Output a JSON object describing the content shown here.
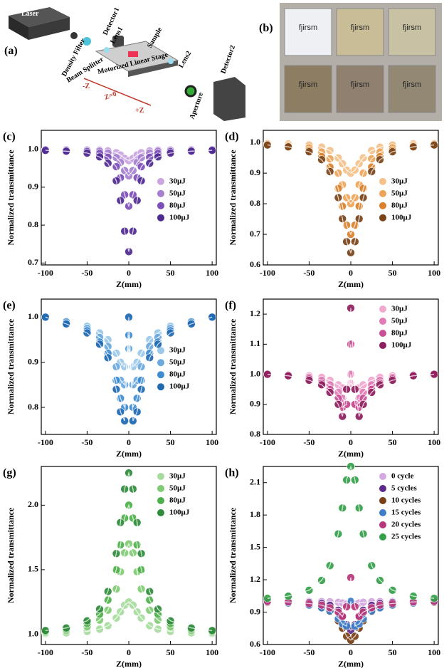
{
  "diagram": {
    "label": "(a)",
    "laser": "Laser",
    "detector1": "Detector1",
    "density_filter": "Density Filter",
    "lens1": "Lens1",
    "sample": "Sample",
    "beam_splitter": "Beam Splitter",
    "stage": "Motorized Linear Stage",
    "lens2": "Lens2",
    "minus_z": "-Z",
    "z0": "Z=0",
    "plus_z": "+Z",
    "aperture": "Aperture",
    "detector2": "Detector2"
  },
  "photo": {
    "label": "(b)",
    "samples": [
      "fjirsm",
      "fjirsm",
      "fjirsm",
      "fjirsm",
      "fjirsm",
      "fjirsm"
    ]
  },
  "chart_data": [
    {
      "type": "scatter",
      "panel": "(c)",
      "x_label": "Z(mm)",
      "y_label": "Normalized transmittance",
      "x": [
        -100,
        -75,
        -50,
        -35,
        -25,
        -15,
        -10,
        -5,
        0,
        5,
        10,
        15,
        25,
        35,
        50,
        75,
        100
      ],
      "xlim": [
        -105,
        105
      ],
      "xticks": [
        -100,
        -50,
        0,
        50,
        100
      ],
      "ylim": [
        0.695,
        1.05
      ],
      "yticks": [
        0.7,
        0.8,
        0.9,
        {
          "value": 1,
          "label": "1.0"
        }
      ],
      "legend": "center right",
      "series": [
        {
          "name": "30μJ",
          "color": "#c9a6e0",
          "values": [
            1.0,
            0.999,
            0.999,
            0.998,
            0.996,
            0.991,
            0.985,
            0.976,
            0.97,
            0.976,
            0.985,
            0.991,
            0.996,
            0.998,
            0.999,
            0.999,
            1.0
          ]
        },
        {
          "name": "50μJ",
          "color": "#a57fd0",
          "values": [
            0.999,
            0.999,
            0.997,
            0.995,
            0.99,
            0.978,
            0.965,
            0.944,
            0.93,
            0.944,
            0.965,
            0.978,
            0.99,
            0.995,
            0.997,
            0.999,
            0.999
          ]
        },
        {
          "name": "80μJ",
          "color": "#7d4fb8",
          "values": [
            0.999,
            0.997,
            0.994,
            0.989,
            0.979,
            0.954,
            0.925,
            0.88,
            0.85,
            0.88,
            0.925,
            0.954,
            0.979,
            0.989,
            0.994,
            0.997,
            0.999
          ]
        },
        {
          "name": "100μJ",
          "color": "#4f2a91",
          "values": [
            0.997,
            0.995,
            0.99,
            0.98,
            0.963,
            0.917,
            0.865,
            0.784,
            0.73,
            0.784,
            0.865,
            0.917,
            0.963,
            0.98,
            0.99,
            0.995,
            0.997
          ]
        }
      ]
    },
    {
      "type": "scatter",
      "panel": "(d)",
      "x_label": "Z(mm)",
      "y_label": "Normalized transmittance",
      "x": [
        -100,
        -75,
        -50,
        -35,
        -25,
        -15,
        -10,
        -5,
        0,
        5,
        10,
        15,
        25,
        35,
        50,
        75,
        100
      ],
      "xlim": [
        -105,
        105
      ],
      "xticks": [
        -100,
        -50,
        0,
        50,
        100
      ],
      "ylim": [
        0.6,
        1.04
      ],
      "yticks": [
        0.6,
        0.7,
        0.8,
        0.9,
        {
          "value": 1,
          "label": "1.0"
        }
      ],
      "legend": "center right",
      "series": [
        {
          "name": "30μJ",
          "color": "#f5c28a",
          "values": [
            0.998,
            0.996,
            0.992,
            0.985,
            0.974,
            0.95,
            0.931,
            0.91,
            0.9,
            0.91,
            0.931,
            0.95,
            0.974,
            0.985,
            0.992,
            0.996,
            0.998
          ]
        },
        {
          "name": "50μJ",
          "color": "#eea55a",
          "values": [
            0.996,
            0.992,
            0.983,
            0.969,
            0.947,
            0.9,
            0.862,
            0.82,
            0.8,
            0.82,
            0.862,
            0.9,
            0.947,
            0.969,
            0.983,
            0.992,
            0.996
          ]
        },
        {
          "name": "80μJ",
          "color": "#d9822b",
          "values": [
            0.993,
            0.988,
            0.975,
            0.954,
            0.92,
            0.85,
            0.792,
            0.73,
            0.7,
            0.73,
            0.792,
            0.85,
            0.92,
            0.954,
            0.975,
            0.988,
            0.993
          ]
        },
        {
          "name": "100μJ",
          "color": "#7a4418",
          "values": [
            0.992,
            0.986,
            0.97,
            0.944,
            0.905,
            0.82,
            0.751,
            0.676,
            0.64,
            0.676,
            0.751,
            0.82,
            0.905,
            0.944,
            0.97,
            0.986,
            0.992
          ]
        }
      ]
    },
    {
      "type": "scatter",
      "panel": "(e)",
      "x_label": "Z(mm)",
      "y_label": "Normalized transmittance",
      "x": [
        -100,
        -75,
        -50,
        -35,
        -25,
        -15,
        -10,
        -5,
        0,
        5,
        10,
        15,
        25,
        35,
        50,
        75,
        100
      ],
      "xlim": [
        -105,
        105
      ],
      "xticks": [
        -100,
        -50,
        0,
        50,
        100
      ],
      "ylim": [
        0.74,
        1.04
      ],
      "yticks": [
        0.8,
        0.9,
        {
          "value": 1,
          "label": "1.0"
        }
      ],
      "legend": "center right",
      "series": [
        {
          "name": "30μJ",
          "color": "#9cc8ea",
          "values": [
            1.0,
            0.99,
            0.98,
            0.965,
            0.95,
            0.92,
            0.9,
            0.89,
            0.93,
            0.89,
            0.9,
            0.92,
            0.95,
            0.965,
            0.98,
            0.99,
            1.0
          ]
        },
        {
          "name": "50μJ",
          "color": "#6aa9de",
          "values": [
            1.0,
            0.99,
            0.975,
            0.955,
            0.935,
            0.89,
            0.86,
            0.85,
            0.93,
            0.85,
            0.86,
            0.89,
            0.935,
            0.955,
            0.975,
            0.99,
            1.0
          ]
        },
        {
          "name": "80μJ",
          "color": "#3d8bd0",
          "values": [
            1.0,
            0.985,
            0.97,
            0.945,
            0.92,
            0.86,
            0.82,
            0.8,
            0.96,
            0.8,
            0.82,
            0.86,
            0.92,
            0.945,
            0.97,
            0.985,
            1.0
          ]
        },
        {
          "name": "100μJ",
          "color": "#1f69b3",
          "values": [
            1.0,
            0.985,
            0.965,
            0.94,
            0.91,
            0.84,
            0.79,
            0.77,
            1.0,
            0.77,
            0.79,
            0.84,
            0.91,
            0.94,
            0.965,
            0.985,
            1.0
          ]
        }
      ]
    },
    {
      "type": "scatter",
      "panel": "(f)",
      "x_label": "Z(mm)",
      "y_label": "Normalized transmittance",
      "x": [
        -100,
        -75,
        -50,
        -35,
        -25,
        -15,
        -10,
        -5,
        0,
        5,
        10,
        15,
        25,
        35,
        50,
        75,
        100
      ],
      "xlim": [
        -105,
        105
      ],
      "xticks": [
        -100,
        -50,
        0,
        50,
        100
      ],
      "ylim": [
        0.8,
        1.25
      ],
      "yticks": [
        0.8,
        0.9,
        {
          "value": 1,
          "label": "1.0"
        },
        1.1,
        1.2
      ],
      "legend": "upper right",
      "series": [
        {
          "name": "30μJ",
          "color": "#f0a8cf",
          "values": [
            1.0,
            1.0,
            0.995,
            0.99,
            0.98,
            0.965,
            0.955,
            0.95,
            0.97,
            0.95,
            0.955,
            0.965,
            0.98,
            0.99,
            0.995,
            1.0,
            1.0
          ]
        },
        {
          "name": "50μJ",
          "color": "#e07ab4",
          "values": [
            1.0,
            0.998,
            0.99,
            0.98,
            0.965,
            0.94,
            0.92,
            0.9,
            1.0,
            0.9,
            0.92,
            0.94,
            0.965,
            0.98,
            0.99,
            0.998,
            1.0
          ]
        },
        {
          "name": "80μJ",
          "color": "#c84f94",
          "values": [
            1.0,
            0.997,
            0.985,
            0.97,
            0.95,
            0.92,
            0.89,
            0.9,
            1.1,
            0.9,
            0.89,
            0.92,
            0.95,
            0.97,
            0.985,
            0.997,
            1.0
          ]
        },
        {
          "name": "100μJ",
          "color": "#8e1f5e",
          "values": [
            1.0,
            0.995,
            0.98,
            0.965,
            0.94,
            0.9,
            0.86,
            0.95,
            1.22,
            0.95,
            0.86,
            0.9,
            0.94,
            0.965,
            0.98,
            0.995,
            1.0
          ]
        }
      ]
    },
    {
      "type": "scatter",
      "panel": "(g)",
      "x_label": "Z(mm)",
      "y_label": "Normalized transmittance",
      "x": [
        -100,
        -75,
        -50,
        -35,
        -25,
        -15,
        -10,
        -5,
        0,
        5,
        10,
        15,
        25,
        35,
        50,
        75,
        100
      ],
      "xlim": [
        -105,
        105
      ],
      "xticks": [
        -100,
        -50,
        0,
        50,
        100
      ],
      "ylim": [
        0.92,
        2.3
      ],
      "yticks": [
        {
          "value": 1,
          "label": "1.0"
        },
        1.5,
        {
          "value": 2,
          "label": "2.0"
        }
      ],
      "legend": "upper right",
      "series": [
        {
          "name": "30μJ",
          "color": "#a7dc9e",
          "values": [
            1.006,
            1.01,
            1.021,
            1.039,
            1.066,
            1.125,
            1.173,
            1.225,
            1.25,
            1.225,
            1.173,
            1.125,
            1.066,
            1.039,
            1.021,
            1.01,
            1.006
          ]
        },
        {
          "name": "50μJ",
          "color": "#7fcb73",
          "values": [
            1.015,
            1.027,
            1.058,
            1.109,
            1.186,
            1.35,
            1.484,
            1.63,
            1.7,
            1.63,
            1.484,
            1.35,
            1.186,
            1.109,
            1.058,
            1.027,
            1.015
          ]
        },
        {
          "name": "80μJ",
          "color": "#4eb04a",
          "values": [
            1.022,
            1.039,
            1.083,
            1.155,
            1.265,
            1.5,
            1.692,
            1.9,
            2.0,
            1.9,
            1.692,
            1.5,
            1.265,
            1.155,
            1.083,
            1.039,
            1.022
          ]
        },
        {
          "name": "100μJ",
          "color": "#2e8b3a",
          "values": [
            1.028,
            1.048,
            1.103,
            1.194,
            1.331,
            1.625,
            1.865,
            2.125,
            2.25,
            2.125,
            1.865,
            1.625,
            1.331,
            1.194,
            1.103,
            1.048,
            1.028
          ]
        }
      ]
    },
    {
      "type": "scatter",
      "panel": "(h)",
      "x_label": "Z(mm)",
      "y_label": "Normalized transmittance",
      "x": [
        -100,
        -75,
        -50,
        -35,
        -25,
        -15,
        -10,
        -5,
        0,
        5,
        10,
        15,
        25,
        35,
        50,
        75,
        100
      ],
      "xlim": [
        -105,
        105
      ],
      "xticks": [
        -100,
        -50,
        0,
        50,
        100
      ],
      "ylim": [
        0.6,
        2.25
      ],
      "yticks": [
        0.6,
        0.9,
        1.2,
        1.5,
        1.8,
        2.1
      ],
      "legend": "upper right",
      "series": [
        {
          "name": "0 cycle",
          "color": "#d4a8e0",
          "values": [
            1.0,
            0.999,
            0.999,
            0.998,
            0.996,
            0.991,
            0.985,
            0.976,
            0.97,
            0.976,
            0.985,
            0.991,
            0.996,
            0.998,
            0.999,
            0.999,
            1.0
          ]
        },
        {
          "name": "5 cycles",
          "color": "#5c2a8a",
          "values": [
            0.997,
            0.995,
            0.99,
            0.98,
            0.963,
            0.917,
            0.865,
            0.784,
            0.73,
            0.784,
            0.865,
            0.917,
            0.963,
            0.98,
            0.99,
            0.995,
            0.997
          ]
        },
        {
          "name": "10 cycles",
          "color": "#7a3f14",
          "values": [
            0.992,
            0.986,
            0.97,
            0.944,
            0.905,
            0.82,
            0.751,
            0.676,
            0.64,
            0.676,
            0.751,
            0.82,
            0.905,
            0.944,
            0.97,
            0.986,
            0.992
          ]
        },
        {
          "name": "15 cycles",
          "color": "#3d7dc8",
          "values": [
            1.0,
            0.985,
            0.965,
            0.94,
            0.91,
            0.84,
            0.79,
            0.77,
            1.0,
            0.77,
            0.79,
            0.84,
            0.91,
            0.94,
            0.965,
            0.985,
            1.0
          ]
        },
        {
          "name": "20 cycles",
          "color": "#b8367a",
          "values": [
            1.0,
            0.995,
            0.98,
            0.965,
            0.94,
            0.9,
            0.86,
            0.95,
            1.22,
            0.95,
            0.86,
            0.9,
            0.94,
            0.965,
            0.98,
            0.995,
            1.0
          ]
        },
        {
          "name": "25 cycles",
          "color": "#35a04a",
          "values": [
            1.028,
            1.048,
            1.103,
            1.194,
            1.331,
            1.625,
            1.865,
            2.125,
            2.25,
            2.125,
            1.865,
            1.625,
            1.331,
            1.194,
            1.103,
            1.048,
            1.028
          ]
        }
      ]
    }
  ]
}
